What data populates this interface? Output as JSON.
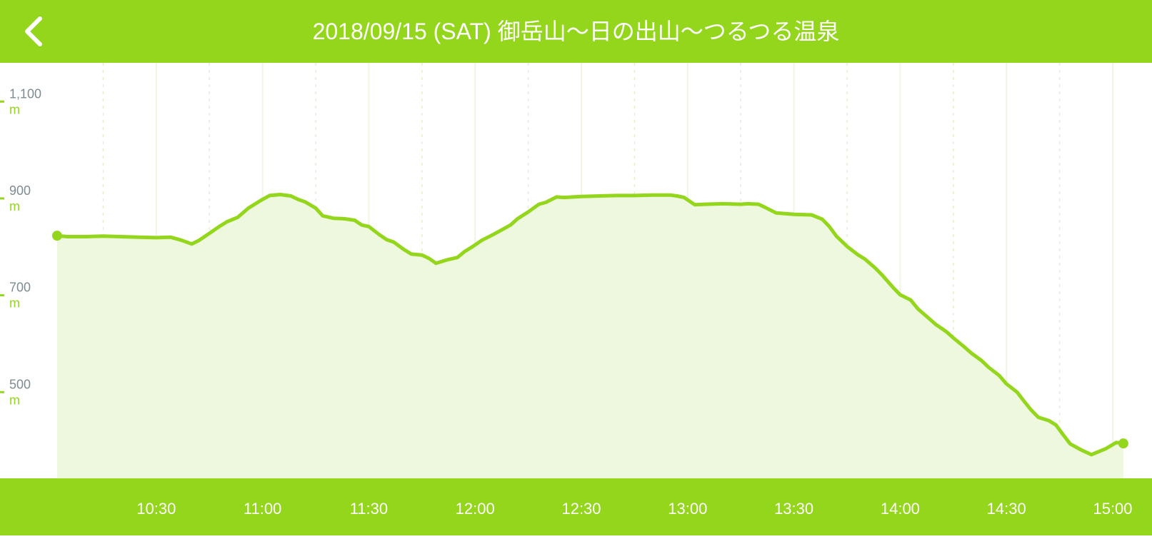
{
  "header": {
    "title": "2018/09/15 (SAT) 御岳山〜日の出山〜つるつる温泉",
    "back_icon": "chevron-left-icon"
  },
  "colors": {
    "header_bg": "#93d61c",
    "footer_bg": "#93d61c",
    "line": "#93d61c",
    "fill": "#eef8df",
    "major_grid": "#eef6e2",
    "minor_grid": "#e3efd2",
    "axis_tick": "#7d8b92",
    "unit_text": "#93d61c"
  },
  "chart_data": {
    "type": "area",
    "xlabel": "",
    "ylabel": "",
    "y_unit": "m",
    "y_ticks": [
      {
        "value": 1100,
        "label": "1,100"
      },
      {
        "value": 900,
        "label": "900"
      },
      {
        "value": 700,
        "label": "700"
      },
      {
        "value": 500,
        "label": "500"
      }
    ],
    "x_ticks": [
      "10:30",
      "11:00",
      "11:30",
      "12:00",
      "12:30",
      "13:00",
      "13:30",
      "14:00",
      "14:30",
      "15:00"
    ],
    "x_range": [
      "10:02",
      "15:05"
    ],
    "ylim": [
      322,
      1180
    ],
    "grid": true,
    "series": [
      {
        "x": [
          "10:02",
          "10:05",
          "10:10",
          "10:15",
          "10:20",
          "10:25",
          "10:30",
          "10:34",
          "10:37",
          "10:40",
          "10:42",
          "10:45",
          "10:48",
          "10:50",
          "10:53",
          "10:56",
          "11:00",
          "11:02",
          "11:05",
          "11:08",
          "11:10",
          "11:12",
          "11:15",
          "11:17",
          "11:20",
          "11:23",
          "11:26",
          "11:28",
          "11:30",
          "11:33",
          "11:35",
          "11:37",
          "11:40",
          "11:42",
          "11:45",
          "11:47",
          "11:49",
          "11:52",
          "11:55",
          "11:57",
          "11:59",
          "12:02",
          "12:05",
          "12:07",
          "12:10",
          "12:12",
          "12:15",
          "12:18",
          "12:20",
          "12:23",
          "12:25",
          "12:30",
          "12:35",
          "12:40",
          "12:45",
          "12:50",
          "12:55",
          "12:57",
          "12:59",
          "13:02",
          "13:05",
          "13:10",
          "13:15",
          "13:17",
          "13:20",
          "13:22",
          "13:25",
          "13:30",
          "13:35",
          "13:38",
          "13:40",
          "13:42",
          "13:45",
          "13:48",
          "13:50",
          "13:53",
          "13:55",
          "13:58",
          "14:00",
          "14:03",
          "14:05",
          "14:08",
          "14:10",
          "14:13",
          "14:15",
          "14:18",
          "14:20",
          "14:23",
          "14:25",
          "14:28",
          "14:30",
          "14:33",
          "14:35",
          "14:37",
          "14:39",
          "14:42",
          "14:44",
          "14:46",
          "14:48",
          "14:51",
          "14:54",
          "14:58",
          "15:01",
          "15:03"
        ],
        "values": [
          823,
          821,
          821,
          822,
          821,
          820,
          819,
          820,
          814,
          806,
          813,
          828,
          843,
          852,
          861,
          880,
          898,
          906,
          908,
          905,
          898,
          893,
          880,
          864,
          859,
          858,
          855,
          845,
          842,
          825,
          815,
          810,
          794,
          785,
          783,
          776,
          766,
          773,
          778,
          790,
          799,
          814,
          825,
          833,
          845,
          858,
          872,
          888,
          892,
          903,
          902,
          904,
          905,
          906,
          906,
          907,
          907,
          905,
          902,
          887,
          888,
          889,
          888,
          889,
          888,
          881,
          870,
          867,
          866,
          857,
          842,
          822,
          801,
          784,
          775,
          756,
          741,
          716,
          701,
          690,
          672,
          653,
          640,
          625,
          612,
          594,
          581,
          565,
          551,
          534,
          517,
          500,
          481,
          463,
          448,
          441,
          432,
          412,
          393,
          381,
          371,
          383,
          396,
          394
        ]
      }
    ]
  }
}
